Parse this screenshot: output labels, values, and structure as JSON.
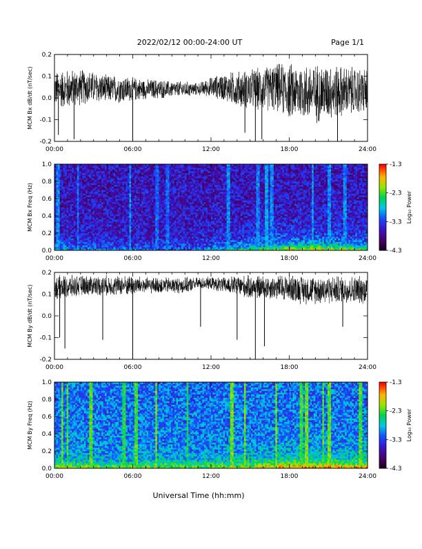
{
  "header": {
    "title": "2022/02/12  00:00-24:00 UT",
    "page": "Page 1/1"
  },
  "footer": {
    "xlabel": "Universal Time (hh:mm)"
  },
  "chart_data": [
    {
      "type": "line",
      "panel": "bx-dbdt",
      "title": "",
      "xlabel": "",
      "ylabel": "MCM Bx dB/dt (nT/sec)",
      "xlim": [
        0,
        24
      ],
      "ylim": [
        -0.2,
        0.2
      ],
      "x_ticks": [
        "00:00",
        "06:00",
        "12:00",
        "18:00",
        "24:00"
      ],
      "y_ticks": [
        "-0.2",
        "-0.1",
        "0.0",
        "0.1",
        "0.2"
      ],
      "y_tick_values": [
        -0.2,
        -0.1,
        0.0,
        0.1,
        0.2
      ],
      "envelope": {
        "hours": [
          0,
          1,
          2,
          3,
          4,
          5,
          6,
          7,
          8,
          9,
          10,
          11,
          12,
          13,
          14,
          15,
          16,
          17,
          18,
          19,
          20,
          21,
          22,
          23,
          24
        ],
        "center": [
          0.04,
          0.04,
          0.05,
          0.05,
          0.04,
          0.04,
          0.04,
          0.04,
          0.04,
          0.04,
          0.04,
          0.04,
          0.05,
          0.05,
          0.04,
          0.04,
          0.04,
          0.05,
          0.03,
          0.03,
          0.02,
          0.03,
          0.03,
          0.03,
          0.03
        ],
        "amplitude": [
          0.09,
          0.1,
          0.09,
          0.08,
          0.07,
          0.07,
          0.06,
          0.05,
          0.05,
          0.04,
          0.04,
          0.03,
          0.05,
          0.07,
          0.09,
          0.1,
          0.11,
          0.12,
          0.14,
          0.14,
          0.15,
          0.14,
          0.13,
          0.12,
          0.12
        ]
      },
      "spikes": [
        {
          "hour": 0.3,
          "value": -0.17
        },
        {
          "hour": 1.5,
          "value": -0.19
        },
        {
          "hour": 6.0,
          "value": -0.2
        },
        {
          "hour": 14.6,
          "value": -0.16
        },
        {
          "hour": 15.4,
          "value": -0.2
        },
        {
          "hour": 15.9,
          "value": -0.19
        },
        {
          "hour": 21.7,
          "value": -0.2
        }
      ]
    },
    {
      "type": "heatmap",
      "panel": "bx-spectrogram",
      "title": "",
      "xlabel": "",
      "ylabel": "MCM Bx Freq (Hz)",
      "colorbar_label": "Log₁₀ Power",
      "colorbar_ticks": [
        "-1.3",
        "-2.3",
        "-3.3",
        "-4.3"
      ],
      "colorbar_range": [
        -4.3,
        -1.3
      ],
      "xlim": [
        0,
        24
      ],
      "ylim": [
        0.0,
        1.0
      ],
      "x_ticks": [
        "00:00",
        "06:00",
        "12:00",
        "18:00",
        "24:00"
      ],
      "y_ticks": [
        "0.0",
        "0.2",
        "0.4",
        "0.6",
        "0.8",
        "1.0"
      ],
      "y_tick_values": [
        0.0,
        0.2,
        0.4,
        0.6,
        0.8,
        1.0
      ],
      "base_power": -3.6,
      "low_freq_boost_by_hour": [
        0.6,
        0.6,
        0.5,
        0.5,
        0.5,
        0.4,
        0.4,
        0.4,
        0.4,
        0.4,
        0.4,
        0.4,
        0.5,
        0.7,
        0.8,
        1.0,
        1.1,
        1.2,
        1.4,
        1.4,
        1.5,
        1.4,
        1.3,
        1.2,
        1.2
      ],
      "bursts": [
        {
          "hour": 0.3,
          "power": -3.0
        },
        {
          "hour": 1.8,
          "power": -3.1
        },
        {
          "hour": 5.8,
          "power": -3.0
        },
        {
          "hour": 7.9,
          "power": -3.1
        },
        {
          "hour": 8.7,
          "power": -3.1
        },
        {
          "hour": 13.3,
          "power": -3.0
        },
        {
          "hour": 15.6,
          "power": -3.0
        },
        {
          "hour": 16.3,
          "power": -2.9
        },
        {
          "hour": 16.7,
          "power": -3.0
        },
        {
          "hour": 19.8,
          "power": -2.9
        },
        {
          "hour": 21.1,
          "power": -3.0
        },
        {
          "hour": 22.3,
          "power": -3.0
        }
      ]
    },
    {
      "type": "line",
      "panel": "by-dbdt",
      "title": "",
      "xlabel": "",
      "ylabel": "MCM By dB/dt (nT/sec)",
      "xlim": [
        0,
        24
      ],
      "ylim": [
        -0.2,
        0.2
      ],
      "x_ticks": [
        "00:00",
        "06:00",
        "12:00",
        "18:00",
        "24:00"
      ],
      "y_ticks": [
        "-0.2",
        "-0.1",
        "0.0",
        "0.1",
        "0.2"
      ],
      "y_tick_values": [
        -0.2,
        -0.1,
        0.0,
        0.1,
        0.2
      ],
      "envelope": {
        "hours": [
          0,
          1,
          2,
          3,
          4,
          5,
          6,
          7,
          8,
          9,
          10,
          11,
          12,
          13,
          14,
          15,
          16,
          17,
          18,
          19,
          20,
          21,
          22,
          23,
          24
        ],
        "center": [
          0.13,
          0.13,
          0.14,
          0.14,
          0.14,
          0.14,
          0.14,
          0.14,
          0.14,
          0.14,
          0.14,
          0.15,
          0.15,
          0.14,
          0.14,
          0.13,
          0.13,
          0.13,
          0.13,
          0.12,
          0.12,
          0.12,
          0.12,
          0.12,
          0.12
        ],
        "amplitude": [
          0.06,
          0.06,
          0.05,
          0.05,
          0.05,
          0.05,
          0.05,
          0.04,
          0.04,
          0.04,
          0.04,
          0.03,
          0.03,
          0.04,
          0.05,
          0.06,
          0.06,
          0.06,
          0.07,
          0.07,
          0.07,
          0.07,
          0.07,
          0.07,
          0.07
        ]
      },
      "spikes": [
        {
          "hour": 0.4,
          "value": -0.1
        },
        {
          "hour": 0.8,
          "value": -0.15
        },
        {
          "hour": 3.7,
          "value": -0.11
        },
        {
          "hour": 6.0,
          "value": -0.2
        },
        {
          "hour": 11.2,
          "value": -0.05
        },
        {
          "hour": 14.0,
          "value": -0.11
        },
        {
          "hour": 15.4,
          "value": -0.2
        },
        {
          "hour": 16.1,
          "value": -0.14
        },
        {
          "hour": 22.1,
          "value": -0.05
        }
      ]
    },
    {
      "type": "heatmap",
      "panel": "by-spectrogram",
      "title": "",
      "xlabel": "",
      "ylabel": "MCM By Freq (Hz)",
      "colorbar_label": "Log₁₀ Power",
      "colorbar_ticks": [
        "-1.3",
        "-2.3",
        "-3.3",
        "-4.3"
      ],
      "colorbar_range": [
        -4.3,
        -1.3
      ],
      "xlim": [
        0,
        24
      ],
      "ylim": [
        0.0,
        1.0
      ],
      "x_ticks": [
        "00:00",
        "06:00",
        "12:00",
        "18:00",
        "24:00"
      ],
      "y_ticks": [
        "0.0",
        "0.2",
        "0.4",
        "0.6",
        "0.8",
        "1.0"
      ],
      "y_tick_values": [
        0.0,
        0.2,
        0.4,
        0.6,
        0.8,
        1.0
      ],
      "base_power": -3.1,
      "low_freq_boost_by_hour": [
        0.9,
        0.9,
        0.8,
        0.8,
        0.7,
        0.7,
        0.7,
        0.8,
        0.8,
        0.8,
        0.7,
        0.7,
        0.8,
        0.9,
        1.0,
        1.0,
        1.1,
        1.2,
        1.3,
        1.3,
        1.3,
        1.3,
        1.2,
        1.2,
        1.2
      ],
      "bursts": [
        {
          "hour": 0.6,
          "power": -2.2
        },
        {
          "hour": 1.0,
          "power": -2.3
        },
        {
          "hour": 2.8,
          "power": -2.3
        },
        {
          "hour": 5.3,
          "power": -2.4
        },
        {
          "hour": 6.3,
          "power": -2.3
        },
        {
          "hour": 7.8,
          "power": -2.2
        },
        {
          "hour": 10.2,
          "power": -2.4
        },
        {
          "hour": 13.6,
          "power": -2.2
        },
        {
          "hour": 14.6,
          "power": -2.2
        },
        {
          "hour": 17.0,
          "power": -2.2
        },
        {
          "hour": 18.9,
          "power": -2.3
        },
        {
          "hour": 19.3,
          "power": -2.2
        },
        {
          "hour": 20.6,
          "power": -2.3
        },
        {
          "hour": 21.1,
          "power": -2.2
        },
        {
          "hour": 23.5,
          "power": -2.3
        }
      ]
    }
  ]
}
